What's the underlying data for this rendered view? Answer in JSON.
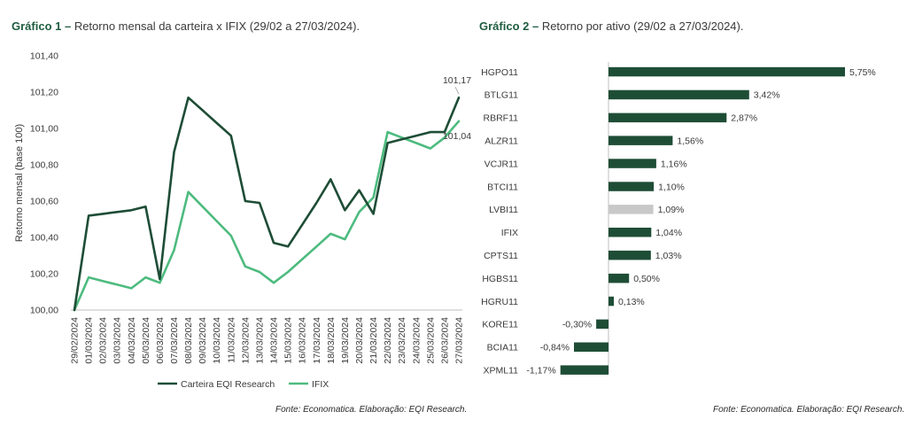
{
  "chart1": {
    "title_lead": "Gráfico 1 –",
    "title_rest": " Retorno mensal da carteira x IFIX (29/02 a 27/03/2024).",
    "source": "Fonte: Economatica. Elaboração: EQI Research.",
    "end_label_carteira": "101,17",
    "end_label_ifix": "101,04"
  },
  "chart2": {
    "title_lead": "Gráfico 2 –",
    "title_rest": " Retorno por ativo  (29/02 a 27/03/2024).",
    "source": "Fonte: Economatica. Elaboração: EQI Research."
  },
  "chart_data": [
    {
      "type": "line",
      "title": "Retorno mensal da carteira x IFIX (29/02 a 27/03/2024).",
      "ylabel": "Retorno mensal (base 100)",
      "ylim": [
        100.0,
        101.4
      ],
      "yticks": [
        "100,00",
        "100,20",
        "100,40",
        "100,60",
        "100,80",
        "101,00",
        "101,20",
        "101,40"
      ],
      "x": [
        "29/02/2024",
        "01/03/2024",
        "02/03/2024",
        "03/03/2024",
        "04/03/2024",
        "05/03/2024",
        "06/03/2024",
        "07/03/2024",
        "08/03/2024",
        "09/03/2024",
        "10/03/2024",
        "11/03/2024",
        "12/03/2024",
        "13/03/2024",
        "14/03/2024",
        "15/03/2024",
        "16/03/2024",
        "17/03/2024",
        "18/03/2024",
        "19/03/2024",
        "20/03/2024",
        "21/03/2024",
        "22/03/2024",
        "23/03/2024",
        "24/03/2024",
        "25/03/2024",
        "26/03/2024",
        "27/03/2024"
      ],
      "series": [
        {
          "name": "Carteira EQI Research",
          "color": "#1e4d36",
          "values": [
            100.0,
            100.52,
            100.53,
            100.54,
            100.55,
            100.57,
            100.17,
            100.87,
            101.17,
            101.1,
            101.03,
            100.96,
            100.6,
            100.59,
            100.37,
            100.35,
            100.47,
            100.59,
            100.72,
            100.55,
            100.66,
            100.53,
            100.92,
            100.94,
            100.96,
            100.98,
            100.98,
            101.17
          ]
        },
        {
          "name": "IFIX",
          "color": "#4dbb7f",
          "values": [
            100.0,
            100.18,
            100.16,
            100.14,
            100.12,
            100.18,
            100.15,
            100.33,
            100.65,
            100.57,
            100.49,
            100.41,
            100.24,
            100.21,
            100.15,
            100.21,
            100.28,
            100.35,
            100.42,
            100.39,
            100.54,
            100.62,
            100.98,
            100.95,
            100.92,
            100.89,
            100.95,
            101.04
          ]
        }
      ],
      "legend_position": "bottom"
    },
    {
      "type": "bar",
      "orientation": "horizontal",
      "title": "Retorno por ativo  (29/02 a 27/03/2024).",
      "categories": [
        "HGPO11",
        "BTLG11",
        "RBRF11",
        "ALZR11",
        "VCJR11",
        "BTCI11",
        "LVBI11",
        "IFIX",
        "CPTS11",
        "HGBS11",
        "HGRU11",
        "KORE11",
        "BCIA11",
        "XPML11"
      ],
      "values": [
        5.75,
        3.42,
        2.87,
        1.56,
        1.16,
        1.1,
        1.09,
        1.04,
        1.03,
        0.5,
        0.13,
        -0.3,
        -0.84,
        -1.17
      ],
      "labels": [
        "5,75%",
        "3,42%",
        "2,87%",
        "1,56%",
        "1,16%",
        "1,10%",
        "1,09%",
        "1,04%",
        "1,03%",
        "0,50%",
        "0,13%",
        "-0,30%",
        "-0,84%",
        "-1,17%"
      ],
      "bar_color": "#1e4d36",
      "highlight": {
        "category": "LVBI11",
        "color": "#c8c8c8"
      }
    }
  ]
}
